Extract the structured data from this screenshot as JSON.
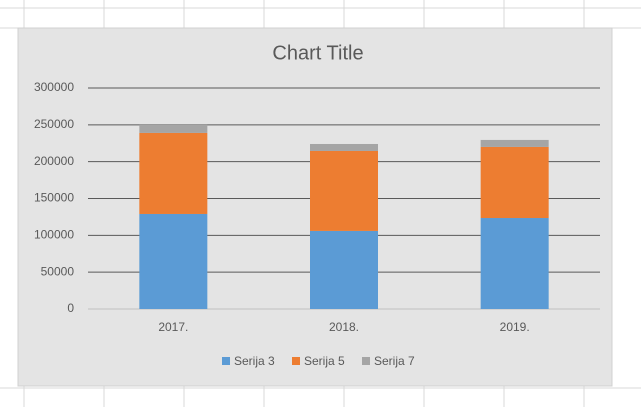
{
  "chart_data": {
    "type": "bar",
    "stacked": true,
    "title": "Chart Title",
    "categories": [
      "2017.",
      "2018.",
      "2019."
    ],
    "series": [
      {
        "name": "Serija 3",
        "color": "#5b9bd5",
        "values": [
          129000,
          106000,
          123500
        ]
      },
      {
        "name": "Serija 5",
        "color": "#ed7d31",
        "values": [
          110000,
          108500,
          96500
        ]
      },
      {
        "name": "Serija 7",
        "color": "#a5a5a5",
        "values": [
          11000,
          9500,
          9500
        ]
      }
    ],
    "ylim": [
      0,
      300000
    ],
    "yticks": [
      0,
      50000,
      100000,
      150000,
      200000,
      250000,
      300000
    ],
    "grid": true,
    "legend": "bottom"
  }
}
